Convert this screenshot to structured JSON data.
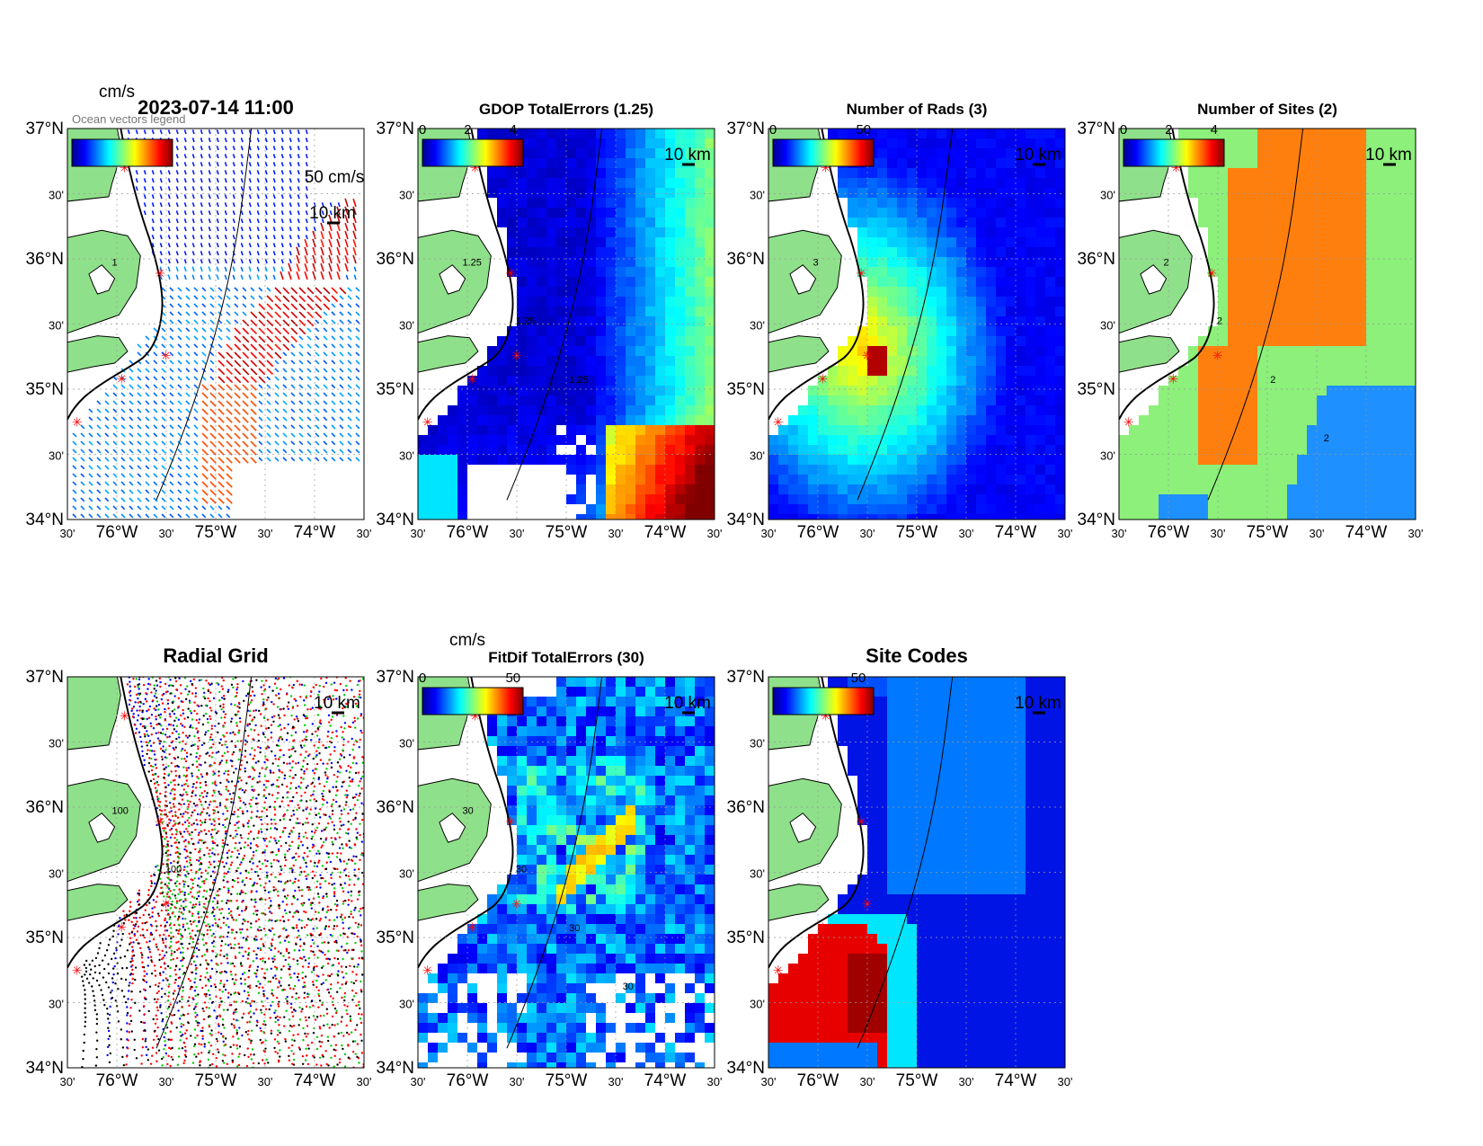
{
  "figure": {
    "panels": [
      {
        "id": "velocity",
        "title": "2023-07-14 11:00",
        "kind": "vectors",
        "colorbar": {
          "label": "cm/s",
          "ticks": [],
          "type": "jet"
        },
        "scale_label": "50 cm/s",
        "km_label": "10 km",
        "contour_labels": [
          "1"
        ],
        "overlay_text": "Ocean vectors legend"
      },
      {
        "id": "gdop",
        "title": "GDOP TotalErrors (1.25)",
        "kind": "field",
        "colorbar": {
          "label": "",
          "ticks": [
            "0",
            "2",
            "4"
          ],
          "type": "jet"
        },
        "km_label": "10 km",
        "contour_labels": [
          "1.25",
          "1.25",
          "1.25"
        ]
      },
      {
        "id": "rads",
        "title": "Number of Rads (3)",
        "kind": "field",
        "colorbar": {
          "label": "",
          "ticks": [
            "0",
            "50"
          ],
          "type": "jet"
        },
        "km_label": "10 km",
        "contour_labels": [
          "3"
        ]
      },
      {
        "id": "sites",
        "title": "Number of Sites (2)",
        "kind": "categorical",
        "colorbar": {
          "label": "",
          "ticks": [
            "0",
            "2",
            "4"
          ],
          "type": "jet"
        },
        "km_label": "10 km",
        "contour_labels": [
          "2",
          "2",
          "2",
          "2"
        ]
      },
      {
        "id": "radial",
        "title": "Radial Grid",
        "kind": "radial",
        "colorbar": null,
        "km_label": "10 km",
        "contour_labels": [
          "100",
          "100"
        ]
      },
      {
        "id": "fitdif",
        "title": "FitDif TotalErrors (30)",
        "kind": "field",
        "colorbar": {
          "label": "cm/s",
          "ticks": [
            "0",
            "50"
          ],
          "type": "jet"
        },
        "km_label": "10 km",
        "contour_labels": [
          "30",
          "30",
          "30",
          "30"
        ]
      },
      {
        "id": "sitecodes",
        "title": "Site Codes",
        "kind": "categorical",
        "colorbar": {
          "label": "",
          "ticks": [
            "50"
          ],
          "type": "jet"
        },
        "km_label": "10 km",
        "contour_labels": []
      }
    ],
    "axes": {
      "lat_labels": [
        "37°N",
        "30'",
        "36°N",
        "30'",
        "35°N",
        "30'",
        "34°N"
      ],
      "lon_labels": [
        "30'",
        "76°W",
        "30'",
        "75°W",
        "30'",
        "74°W",
        "30'"
      ],
      "lat_range": [
        34,
        37
      ],
      "lon_range": [
        -76.5,
        -73.5
      ]
    },
    "colors": {
      "land": "#8fe08a",
      "site_marker": "#ff0000",
      "orange": "#ff7f0e",
      "green_cat": "#8cf07a",
      "blue_cat": "#1e90ff",
      "navy": "#00008f"
    }
  }
}
